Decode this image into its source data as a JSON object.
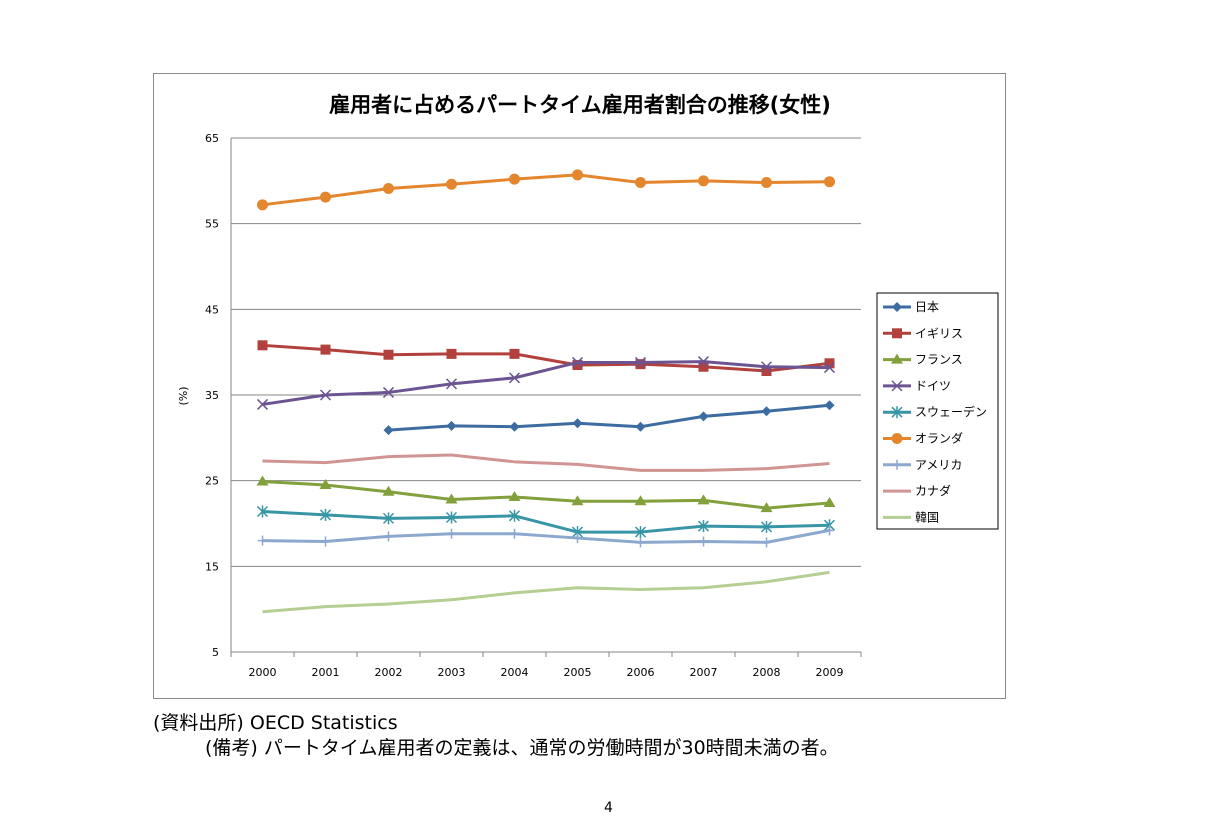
{
  "chart_data": {
    "type": "line",
    "title": "雇用者に占めるパートタイム雇用者割合の推移(女性)",
    "ylabel": "(%)",
    "xlabel": "",
    "categories": [
      "2000",
      "2001",
      "2002",
      "2003",
      "2004",
      "2005",
      "2006",
      "2007",
      "2008",
      "2009"
    ],
    "ylim": [
      5,
      65
    ],
    "yticks": [
      65,
      55,
      45,
      35,
      25,
      15,
      5
    ],
    "grid": true,
    "legend_position": "right",
    "series": [
      {
        "name": "日本",
        "color": "#3D6CA1",
        "marker": "diamond",
        "values": [
          null,
          null,
          30.9,
          31.4,
          31.3,
          31.7,
          31.3,
          32.5,
          33.1,
          33.8
        ]
      },
      {
        "name": "イギリス",
        "color": "#B2403C",
        "marker": "square",
        "values": [
          40.8,
          40.3,
          39.7,
          39.8,
          39.8,
          38.5,
          38.6,
          38.3,
          37.8,
          38.7
        ]
      },
      {
        "name": "フランス",
        "color": "#82A03C",
        "marker": "triangle",
        "values": [
          24.9,
          24.5,
          23.7,
          22.8,
          23.1,
          22.6,
          22.6,
          22.7,
          21.8,
          22.4
        ]
      },
      {
        "name": "ドイツ",
        "color": "#6B5491",
        "marker": "x",
        "values": [
          33.9,
          35.0,
          35.3,
          36.3,
          37.0,
          38.8,
          38.8,
          38.9,
          38.3,
          38.2
        ]
      },
      {
        "name": "スウェーデン",
        "color": "#3895A5",
        "marker": "star",
        "values": [
          21.4,
          21.0,
          20.6,
          20.7,
          20.9,
          19.0,
          19.0,
          19.7,
          19.6,
          19.8
        ]
      },
      {
        "name": "オランダ",
        "color": "#E4862D",
        "marker": "circle",
        "values": [
          57.2,
          58.1,
          59.1,
          59.6,
          60.2,
          60.7,
          59.8,
          60.0,
          59.8,
          59.9
        ]
      },
      {
        "name": "アメリカ",
        "color": "#8CA8CF",
        "marker": "plus",
        "values": [
          18.0,
          17.9,
          18.5,
          18.8,
          18.8,
          18.3,
          17.8,
          17.9,
          17.8,
          19.2
        ]
      },
      {
        "name": "カナダ",
        "color": "#D09593",
        "marker": "none",
        "values": [
          27.3,
          27.1,
          27.8,
          28.0,
          27.2,
          26.9,
          26.2,
          26.2,
          26.4,
          27.0
        ]
      },
      {
        "name": "韓国",
        "color": "#B5CE92",
        "marker": "none",
        "values": [
          9.7,
          10.3,
          10.6,
          11.1,
          11.9,
          12.5,
          12.3,
          12.5,
          13.2,
          14.3
        ]
      }
    ]
  },
  "notes": {
    "source": "(資料出所) OECD Statistics",
    "remarks": "(備考) パートタイム雇用者の定義は、通常の労働時間が30時間未満の者。"
  },
  "page_number": "4"
}
